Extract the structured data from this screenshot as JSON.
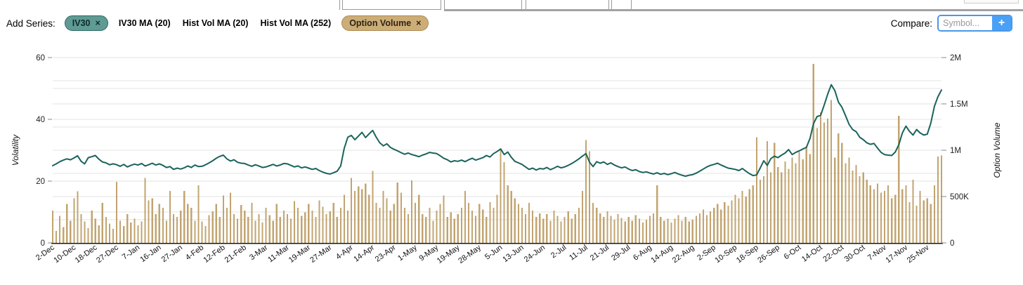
{
  "toolbar": {
    "add_series_label": "Add Series:",
    "remove_glyph": "×",
    "chips": [
      {
        "label": "IV30",
        "removable": true,
        "style": "teal",
        "bg": "#5f9a94",
        "border": "#2c6a63",
        "text_color": "#0f2c29"
      },
      {
        "label": "IV30 MA (20)",
        "removable": false,
        "style": "plain"
      },
      {
        "label": "Hist Vol MA (20)",
        "removable": false,
        "style": "plain"
      },
      {
        "label": "Hist Vol MA (252)",
        "removable": false,
        "style": "plain"
      },
      {
        "label": "Option Volume",
        "removable": true,
        "style": "tan",
        "bg": "#ccad78",
        "border": "#ab8c51",
        "text_color": "#2e2414"
      }
    ],
    "compare": {
      "label": "Compare:",
      "symbol_placeholder": "Symbol...",
      "add_button_label": "+",
      "box_border_color": "#4a97e8",
      "button_bg": "#49a0f6"
    }
  },
  "chart_data": {
    "type": "line+bar",
    "grid": "on",
    "gridline_color": "#e3e3e3",
    "axis_line_color": "#1a1a1a",
    "points_per_tick": 6,
    "x_tick_labels": [
      "2-Dec",
      "10-Dec",
      "18-Dec",
      "27-Dec",
      "7-Jan",
      "16-Jan",
      "27-Jan",
      "4-Feb",
      "12-Feb",
      "21-Feb",
      "3-Mar",
      "11-Mar",
      "19-Mar",
      "27-Mar",
      "4-Apr",
      "14-Apr",
      "23-Apr",
      "1-May",
      "9-May",
      "19-May",
      "28-May",
      "5-Jun",
      "13-Jun",
      "24-Jun",
      "2-Jul",
      "11-Jul",
      "21-Jul",
      "29-Jul",
      "6-Aug",
      "14-Aug",
      "22-Aug",
      "2-Sep",
      "10-Sep",
      "18-Sep",
      "26-Sep",
      "6-Oct",
      "14-Oct",
      "22-Oct",
      "30-Oct",
      "7-Nov",
      "17-Nov",
      "25-Nov"
    ],
    "left_axis": {
      "title": "Volatility",
      "range": [
        0,
        60
      ],
      "tick_values": [
        0,
        20,
        40,
        60
      ],
      "tick_labels": [
        "0",
        "20",
        "40",
        "60"
      ],
      "grid_values": [
        10,
        20,
        30,
        40,
        50,
        60
      ]
    },
    "right_axis": {
      "title": "Option Volume",
      "range_thousands": [
        0,
        2000
      ],
      "tick_values_thousands": [
        0,
        500,
        1000,
        1500,
        2000
      ],
      "tick_labels": [
        "0",
        "500K",
        "1M",
        "1.5M",
        "2M"
      ],
      "grid_values_thousands": [
        250,
        500,
        750,
        1000,
        1250,
        1500,
        1750,
        2000
      ]
    },
    "series": [
      {
        "name": "IV30",
        "type": "line",
        "axis": "left",
        "color": "#1a635c",
        "values": [
          25.0,
          25.6,
          26.3,
          26.8,
          27.2,
          26.9,
          27.5,
          28.2,
          26.4,
          25.6,
          27.6,
          27.9,
          28.3,
          27.1,
          26.2,
          25.9,
          25.3,
          25.6,
          25.3,
          24.8,
          25.4,
          24.6,
          25.1,
          25.5,
          25.2,
          25.7,
          24.9,
          25.3,
          25.8,
          25.2,
          25.6,
          25.1,
          24.4,
          24.7,
          23.8,
          24.2,
          23.9,
          24.3,
          24.9,
          24.4,
          25.2,
          24.7,
          24.8,
          25.3,
          25.9,
          26.6,
          27.4,
          28.0,
          28.4,
          27.2,
          26.5,
          26.9,
          26.1,
          25.8,
          25.7,
          25.2,
          24.8,
          25.3,
          24.9,
          24.4,
          24.6,
          25.0,
          25.4,
          24.9,
          25.2,
          25.7,
          25.6,
          25.1,
          24.6,
          24.9,
          24.3,
          24.6,
          24.2,
          23.8,
          24.1,
          23.4,
          22.9,
          22.5,
          22.3,
          22.7,
          23.2,
          24.9,
          30.6,
          34.2,
          34.8,
          33.4,
          34.6,
          35.8,
          34.1,
          35.3,
          36.4,
          34.2,
          32.4,
          31.4,
          32.1,
          30.9,
          30.3,
          29.8,
          29.2,
          28.7,
          29.1,
          28.6,
          28.3,
          27.9,
          28.4,
          28.8,
          29.3,
          29.1,
          28.9,
          28.2,
          27.4,
          26.9,
          26.2,
          26.6,
          26.4,
          26.8,
          26.3,
          26.9,
          27.4,
          26.8,
          27.2,
          27.6,
          28.3,
          27.8,
          28.9,
          29.6,
          30.4,
          28.6,
          29.4,
          27.7,
          26.4,
          25.9,
          25.4,
          24.6,
          23.8,
          24.2,
          23.6,
          24.1,
          23.9,
          24.4,
          23.7,
          24.2,
          24.8,
          24.3,
          24.6,
          25.1,
          25.7,
          26.4,
          27.2,
          28.1,
          28.9,
          26.1,
          24.7,
          26.3,
          25.8,
          26.2,
          25.4,
          25.9,
          25.2,
          24.7,
          24.3,
          24.6,
          23.9,
          23.4,
          23.7,
          23.1,
          22.8,
          23.0,
          22.6,
          22.3,
          22.7,
          22.2,
          22.5,
          22.1,
          22.4,
          22.8,
          22.3,
          21.9,
          21.6,
          21.9,
          22.1,
          22.6,
          23.2,
          23.9,
          24.6,
          25.1,
          25.4,
          25.8,
          25.2,
          24.7,
          24.2,
          24.0,
          23.8,
          23.4,
          24.1,
          23.2,
          22.4,
          21.8,
          22.0,
          24.2,
          26.6,
          25.1,
          27.3,
          28.1,
          27.6,
          28.4,
          29.1,
          30.2,
          28.6,
          29.3,
          29.8,
          30.4,
          30.9,
          33.8,
          38.6,
          40.9,
          41.3,
          44.6,
          48.2,
          51.2,
          49.3,
          45.6,
          43.9,
          41.2,
          38.4,
          36.7,
          36.0,
          34.2,
          33.4,
          32.4,
          31.9,
          32.2,
          30.7,
          29.3,
          28.6,
          28.4,
          28.3,
          29.4,
          31.8,
          35.6,
          37.8,
          36.1,
          34.9,
          36.7,
          35.6,
          34.9,
          35.2,
          38.8,
          44.2,
          47.3,
          49.5
        ]
      },
      {
        "name": "Option Volume",
        "type": "bar",
        "axis": "right",
        "color": "#c2a470",
        "values_thousands": [
          350,
          130,
          290,
          170,
          420,
          240,
          480,
          555,
          310,
          230,
          160,
          350,
          260,
          190,
          430,
          280,
          210,
          150,
          660,
          240,
          180,
          310,
          220,
          260,
          190,
          230,
          700,
          460,
          480,
          310,
          420,
          380,
          240,
          560,
          310,
          280,
          350,
          560,
          420,
          380,
          240,
          620,
          230,
          180,
          300,
          340,
          420,
          280,
          510,
          380,
          540,
          310,
          260,
          410,
          350,
          280,
          430,
          240,
          310,
          220,
          380,
          300,
          240,
          420,
          280,
          350,
          310,
          260,
          450,
          380,
          290,
          330,
          420,
          350,
          280,
          460,
          390,
          310,
          340,
          430,
          280,
          380,
          520,
          350,
          700,
          560,
          610,
          580,
          640,
          520,
          775,
          430,
          380,
          560,
          480,
          350,
          420,
          650,
          540,
          380,
          310,
          675,
          430,
          520,
          310,
          280,
          380,
          240,
          350,
          420,
          510,
          280,
          330,
          260,
          310,
          380,
          560,
          430,
          350,
          290,
          420,
          360,
          280,
          440,
          380,
          520,
          1020,
          870,
          620,
          560,
          480,
          420,
          380,
          310,
          430,
          350,
          280,
          320,
          260,
          310,
          240,
          350,
          290,
          230,
          280,
          340,
          260,
          310,
          380,
          560,
          1110,
          990,
          430,
          380,
          320,
          280,
          340,
          290,
          250,
          310,
          270,
          230,
          280,
          240,
          300,
          260,
          220,
          250,
          290,
          320,
          620,
          280,
          240,
          260,
          220,
          260,
          300,
          240,
          280,
          230,
          250,
          290,
          320,
          360,
          300,
          340,
          380,
          420,
          360,
          440,
          400,
          460,
          520,
          480,
          560,
          500,
          580,
          620,
          1140,
          680,
          720,
          1100,
          760,
          1080,
          820,
          760,
          880,
          800,
          920,
          860,
          980,
          900,
          1040,
          960,
          1930,
          1240,
          1410,
          1300,
          1340,
          1540,
          920,
          1180,
          1080,
          860,
          920,
          780,
          840,
          720,
          760,
          680,
          620,
          580,
          640,
          540,
          560,
          620,
          480,
          520,
          1370,
          580,
          620,
          440,
          680,
          400,
          560,
          460,
          480,
          420,
          620,
          930,
          945
        ]
      }
    ]
  }
}
